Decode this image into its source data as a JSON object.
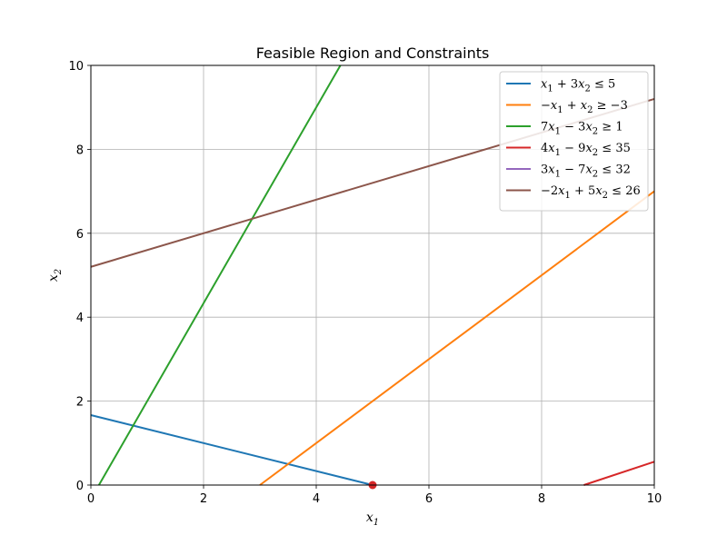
{
  "chart_data": {
    "type": "line",
    "title": "Feasible Region and Constraints",
    "xlabel": "x1",
    "ylabel": "x2",
    "xlim": [
      0,
      10
    ],
    "ylim": [
      0,
      10
    ],
    "xticks": [
      0,
      2,
      4,
      6,
      8,
      10
    ],
    "yticks": [
      0,
      2,
      4,
      6,
      8,
      10
    ],
    "grid": true,
    "legend_position": "top-right",
    "series": [
      {
        "name": "x1 + 3x2 ≤ 5",
        "color": "#1f77b4",
        "a": 1,
        "b": 3,
        "c": 5
      },
      {
        "name": "−x1 + x2 ≥ −3",
        "color": "#ff7f0e",
        "a": -1,
        "b": 1,
        "c": -3
      },
      {
        "name": "7x1 − 3x2 ≥ 1",
        "color": "#2ca02c",
        "a": 7,
        "b": -3,
        "c": 1
      },
      {
        "name": "4x1 − 9x2 ≤ 35",
        "color": "#d62728",
        "a": 4,
        "b": -9,
        "c": 35
      },
      {
        "name": "3x1 − 7x2 ≤ 32",
        "color": "#9467bd",
        "a": 3,
        "b": -7,
        "c": 32
      },
      {
        "name": "−2x1 + 5x2 ≤ 26",
        "color": "#8c564b",
        "a": -2,
        "b": 5,
        "c": 26
      }
    ],
    "points": [
      {
        "x": 5,
        "y": 0,
        "color": "#d62728"
      }
    ]
  }
}
